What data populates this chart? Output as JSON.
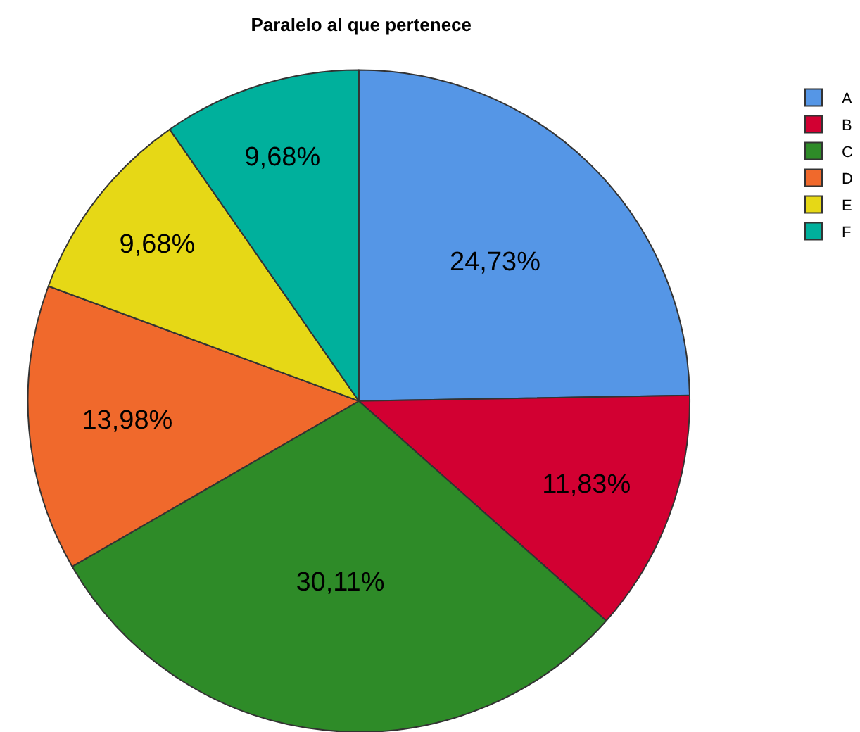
{
  "chart_data": {
    "type": "pie",
    "title": "Paralelo al que pertenece",
    "categories": [
      "A",
      "B",
      "C",
      "D",
      "E",
      "F"
    ],
    "values": [
      24.73,
      11.83,
      30.11,
      13.98,
      9.68,
      9.68
    ],
    "value_labels": [
      "24,73%",
      "11,83%",
      "30,11%",
      "13,98%",
      "9,68%",
      "9,68%"
    ],
    "colors": [
      "#5596e6",
      "#d20032",
      "#2e8b28",
      "#f0692c",
      "#e6d816",
      "#00b09c"
    ],
    "legend": "top right"
  }
}
